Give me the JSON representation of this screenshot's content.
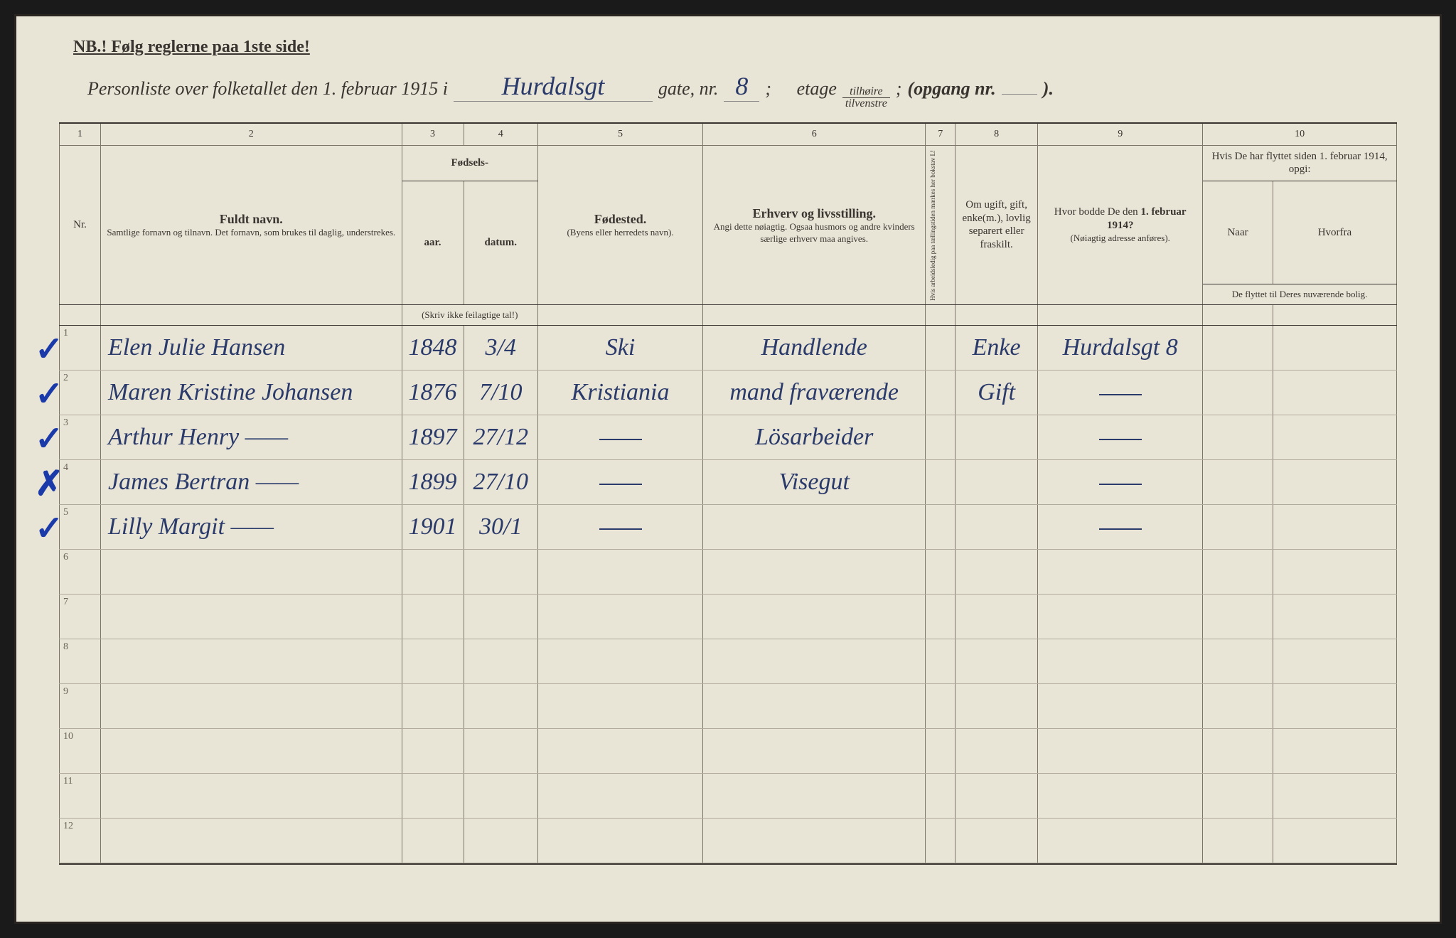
{
  "meta": {
    "background_color": "#e8e4d6",
    "print_color": "#3a3530",
    "ink_color": "#2a3a6a",
    "rule_color": "#7a7568",
    "faint_rule_color": "#b0ab9c"
  },
  "header": {
    "nb": "NB.! Følg reglerne paa 1ste side!",
    "line_prefix": "Personliste over folketallet den 1. februar 1915 i",
    "gate_name": "Hurdalsgt",
    "gate_label": "gate, nr.",
    "gate_nr": "8",
    "semicolon1": ";",
    "etage_label": "etage",
    "fraction_top": "tilhøire",
    "fraction_bot": "tilvenstre",
    "semicolon2": ";",
    "opgang_label": "(opgang nr.",
    "opgang_nr": "",
    "opgang_close": ")."
  },
  "column_numbers": [
    "1",
    "2",
    "3",
    "4",
    "5",
    "6",
    "7",
    "8",
    "9",
    "10"
  ],
  "columns": {
    "nr": "Nr.",
    "name_title": "Fuldt navn.",
    "name_sub": "Samtlige fornavn og tilnavn. Det fornavn, som brukes til daglig, understrekes.",
    "birth_group": "Fødsels-",
    "year": "aar.",
    "date": "datum.",
    "birth_note": "(Skriv ikke feilagtige tal!)",
    "place_title": "Fødested.",
    "place_sub": "(Byens eller herredets navn).",
    "occ_title": "Erhverv og livsstilling.",
    "occ_sub": "Angi dette nøiagtig. Ogsaa husmors og andre kvinders særlige erhverv maa angives.",
    "col7": "Hvis arbeidsledig paa tællingstiden mærkes her bokstav L!",
    "col8": "Om ugift, gift, enke(m.), lovlig separert eller fraskilt.",
    "col9_title": "Hvor bodde De den 1. februar 1914?",
    "col9_sub": "(Nøiagtig adresse anføres).",
    "col10_title": "Hvis De har flyttet siden 1. februar 1914, opgi:",
    "col10a": "Naar",
    "col10b": "Hvorfra",
    "col10_sub": "De flyttet til Deres nuværende bolig."
  },
  "rows": [
    {
      "nr": "1",
      "mark": "✓",
      "name": "Elen Julie Hansen",
      "year": "1848",
      "date": "3/4",
      "place": "Ski",
      "occ": "Handlende",
      "col7": "",
      "status": "Enke",
      "addr": "Hurdalsgt 8",
      "when": "",
      "from": ""
    },
    {
      "nr": "2",
      "mark": "✓",
      "name": "Maren Kristine Johansen",
      "year": "1876",
      "date": "7/10",
      "place": "Kristiania",
      "occ": "mand fraværende",
      "col7": "",
      "status": "Gift",
      "addr": "—",
      "when": "",
      "from": ""
    },
    {
      "nr": "3",
      "mark": "✓",
      "name": "Arthur Henry ——",
      "year": "1897",
      "date": "27/12",
      "place": "—",
      "occ": "Lösarbeider",
      "col7": "",
      "status": "",
      "addr": "—",
      "when": "",
      "from": ""
    },
    {
      "nr": "4",
      "mark": "✗",
      "name": "James Bertran ——",
      "year": "1899",
      "date": "27/10",
      "place": "—",
      "occ": "Visegut",
      "col7": "",
      "status": "",
      "addr": "—",
      "when": "",
      "from": ""
    },
    {
      "nr": "5",
      "mark": "✓",
      "name": "Lilly Margit ——",
      "year": "1901",
      "date": "30/1",
      "place": "—",
      "occ": "",
      "col7": "",
      "status": "",
      "addr": "—",
      "when": "",
      "from": ""
    },
    {
      "nr": "6",
      "mark": "",
      "name": "",
      "year": "",
      "date": "",
      "place": "",
      "occ": "",
      "col7": "",
      "status": "",
      "addr": "",
      "when": "",
      "from": ""
    },
    {
      "nr": "7",
      "mark": "",
      "name": "",
      "year": "",
      "date": "",
      "place": "",
      "occ": "",
      "col7": "",
      "status": "",
      "addr": "",
      "when": "",
      "from": ""
    },
    {
      "nr": "8",
      "mark": "",
      "name": "",
      "year": "",
      "date": "",
      "place": "",
      "occ": "",
      "col7": "",
      "status": "",
      "addr": "",
      "when": "",
      "from": ""
    },
    {
      "nr": "9",
      "mark": "",
      "name": "",
      "year": "",
      "date": "",
      "place": "",
      "occ": "",
      "col7": "",
      "status": "",
      "addr": "",
      "when": "",
      "from": ""
    },
    {
      "nr": "10",
      "mark": "",
      "name": "",
      "year": "",
      "date": "",
      "place": "",
      "occ": "",
      "col7": "",
      "status": "",
      "addr": "",
      "when": "",
      "from": ""
    },
    {
      "nr": "11",
      "mark": "",
      "name": "",
      "year": "",
      "date": "",
      "place": "",
      "occ": "",
      "col7": "",
      "status": "",
      "addr": "",
      "when": "",
      "from": ""
    },
    {
      "nr": "12",
      "mark": "",
      "name": "",
      "year": "",
      "date": "",
      "place": "",
      "occ": "",
      "col7": "",
      "status": "",
      "addr": "",
      "when": "",
      "from": ""
    }
  ]
}
